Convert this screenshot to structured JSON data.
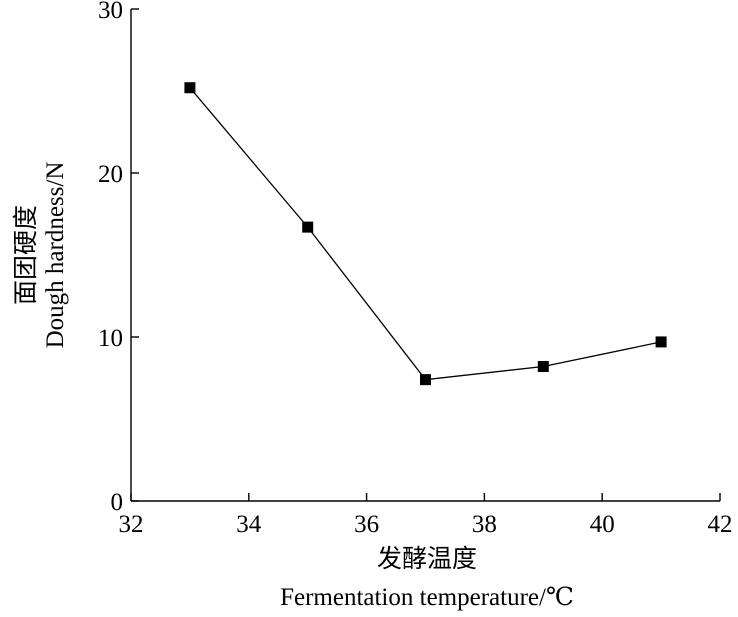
{
  "chart_data": {
    "type": "line",
    "x": [
      33,
      35,
      37,
      39,
      41
    ],
    "series": [
      {
        "values": [
          25.2,
          16.7,
          7.4,
          8.2,
          9.7
        ],
        "marker": "square",
        "color": "#000000"
      }
    ],
    "xlabel_cn": "发酵温度",
    "xlabel": "Fermentation temperature/℃",
    "ylabel_cn": "面团硬度",
    "ylabel": "Dough hardness/N",
    "xlim": [
      32,
      42
    ],
    "ylim": [
      0,
      30
    ],
    "xticks": [
      32,
      34,
      36,
      38,
      40,
      42
    ],
    "yticks": [
      0,
      10,
      20,
      30
    ],
    "grid": false
  }
}
